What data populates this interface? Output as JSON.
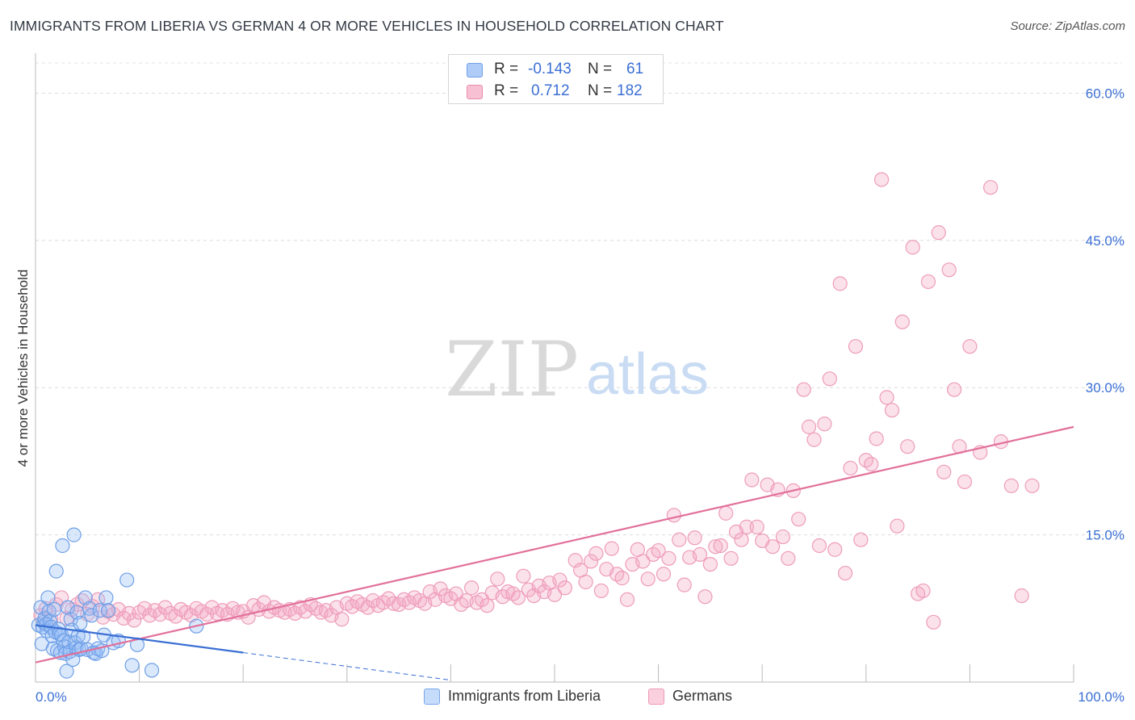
{
  "title": "IMMIGRANTS FROM LIBERIA VS GERMAN 4 OR MORE VEHICLES IN HOUSEHOLD CORRELATION CHART",
  "source": "Source: ZipAtlas.com",
  "watermark": {
    "zip": "ZIP",
    "atlas": "atlas"
  },
  "stats_legend": {
    "rows": [
      {
        "r_label": "R =",
        "r_value": "-0.143",
        "n_label": "N =",
        "n_value": "61",
        "color": "#aeccf7",
        "border": "#6f9fe6"
      },
      {
        "r_label": "R =",
        "r_value": "0.712",
        "n_label": "N =",
        "n_value": "182",
        "color": "#f8c1d3",
        "border": "#e98bab"
      }
    ]
  },
  "bottom_legend": [
    {
      "label": "Immigrants from Liberia",
      "color": "#c5dcfb",
      "border": "#7aa7ea"
    },
    {
      "label": "Germans",
      "color": "#fbd0de",
      "border": "#ec98b5"
    }
  ],
  "chart_data": {
    "type": "scatter",
    "title": "IMMIGRANTS FROM LIBERIA VS GERMAN 4 OR MORE VEHICLES IN HOUSEHOLD CORRELATION CHART",
    "xlabel": "",
    "ylabel": "4 or more Vehicles in Household",
    "xlim": [
      0,
      100
    ],
    "ylim": [
      0,
      63
    ],
    "x_tick_labels": [
      {
        "value": 0,
        "label": "0.0%"
      },
      {
        "value": 100,
        "label": "100.0%"
      }
    ],
    "y_tick_labels": [
      {
        "value": 15,
        "label": "15.0%"
      },
      {
        "value": 30,
        "label": "30.0%"
      },
      {
        "value": 45,
        "label": "45.0%"
      },
      {
        "value": 60,
        "label": "60.0%"
      }
    ],
    "x_minor_ticks": [
      10,
      20,
      30,
      40,
      50,
      60,
      70,
      80,
      90,
      100
    ],
    "grid": true,
    "legend_position": "top-center",
    "colors": {
      "liberia": "#3b6fd4",
      "germans": "#e2709a"
    },
    "series": [
      {
        "name": "Immigrants from Liberia",
        "color": "#3b6fd4",
        "points": [
          [
            0.3,
            5.8
          ],
          [
            0.5,
            7.6
          ],
          [
            0.6,
            3.9
          ],
          [
            0.7,
            5.6
          ],
          [
            0.8,
            6.1
          ],
          [
            0.9,
            6.5
          ],
          [
            1.0,
            5.9
          ],
          [
            1.1,
            5.2
          ],
          [
            1.2,
            8.6
          ],
          [
            1.3,
            7.2
          ],
          [
            1.4,
            6.2
          ],
          [
            1.5,
            5.6
          ],
          [
            1.6,
            4.7
          ],
          [
            1.7,
            3.4
          ],
          [
            1.8,
            7.4
          ],
          [
            1.9,
            5.1
          ],
          [
            2.0,
            11.3
          ],
          [
            2.1,
            3.2
          ],
          [
            2.2,
            5.4
          ],
          [
            2.3,
            4.9
          ],
          [
            2.4,
            3.0
          ],
          [
            2.5,
            4.8
          ],
          [
            2.6,
            13.9
          ],
          [
            2.7,
            4.2
          ],
          [
            2.8,
            3.6
          ],
          [
            2.9,
            2.9
          ],
          [
            3.0,
            1.1
          ],
          [
            3.1,
            7.6
          ],
          [
            3.2,
            4.1
          ],
          [
            3.3,
            3.1
          ],
          [
            3.4,
            6.4
          ],
          [
            3.5,
            5.3
          ],
          [
            3.6,
            2.3
          ],
          [
            3.7,
            15.0
          ],
          [
            3.8,
            4.0
          ],
          [
            3.9,
            3.5
          ],
          [
            4.0,
            7.1
          ],
          [
            4.1,
            4.7
          ],
          [
            4.2,
            3.3
          ],
          [
            4.3,
            6.0
          ],
          [
            4.4,
            3.4
          ],
          [
            4.6,
            4.6
          ],
          [
            4.8,
            8.6
          ],
          [
            5.0,
            3.3
          ],
          [
            5.2,
            7.5
          ],
          [
            5.4,
            6.8
          ],
          [
            5.6,
            3.0
          ],
          [
            5.8,
            2.9
          ],
          [
            6.0,
            3.4
          ],
          [
            6.2,
            7.3
          ],
          [
            6.4,
            3.2
          ],
          [
            6.6,
            4.8
          ],
          [
            6.8,
            8.6
          ],
          [
            7.0,
            7.3
          ],
          [
            7.5,
            4.0
          ],
          [
            8.0,
            4.2
          ],
          [
            8.8,
            10.4
          ],
          [
            9.3,
            1.7
          ],
          [
            9.8,
            3.8
          ],
          [
            11.2,
            1.2
          ],
          [
            15.5,
            5.7
          ]
        ],
        "trend": {
          "x0": 0,
          "y0": 5.8,
          "x1": 20,
          "y1": 3.0,
          "dashed_to_x": 40,
          "dashed_to_y": 0.2
        }
      },
      {
        "name": "Germans",
        "color": "#e2709a",
        "points": [
          [
            0.5,
            6.8
          ],
          [
            1.0,
            7.5
          ],
          [
            1.5,
            6.4
          ],
          [
            2.0,
            7.9
          ],
          [
            2.5,
            8.6
          ],
          [
            3.0,
            6.5
          ],
          [
            3.5,
            7.4
          ],
          [
            4.0,
            7.9
          ],
          [
            4.5,
            8.3
          ],
          [
            5.0,
            6.9
          ],
          [
            5.5,
            7.7
          ],
          [
            6.0,
            8.4
          ],
          [
            6.5,
            6.6
          ],
          [
            7.0,
            7.2
          ],
          [
            7.5,
            6.9
          ],
          [
            8.0,
            7.4
          ],
          [
            8.5,
            6.5
          ],
          [
            9.0,
            7.0
          ],
          [
            9.5,
            6.3
          ],
          [
            10.0,
            7.1
          ],
          [
            10.5,
            7.5
          ],
          [
            11.0,
            6.8
          ],
          [
            11.5,
            7.3
          ],
          [
            12.0,
            6.9
          ],
          [
            12.5,
            7.6
          ],
          [
            13.0,
            7.0
          ],
          [
            13.5,
            6.7
          ],
          [
            14.0,
            7.4
          ],
          [
            14.5,
            7.1
          ],
          [
            15.0,
            6.8
          ],
          [
            15.5,
            7.5
          ],
          [
            16.0,
            7.2
          ],
          [
            16.5,
            6.9
          ],
          [
            17.0,
            7.6
          ],
          [
            17.5,
            7.0
          ],
          [
            18.0,
            7.3
          ],
          [
            18.5,
            6.9
          ],
          [
            19.0,
            7.5
          ],
          [
            19.5,
            7.1
          ],
          [
            20.0,
            7.2
          ],
          [
            20.5,
            6.6
          ],
          [
            21.0,
            7.8
          ],
          [
            21.5,
            7.4
          ],
          [
            22.0,
            8.1
          ],
          [
            22.5,
            7.2
          ],
          [
            23.0,
            7.6
          ],
          [
            23.5,
            7.3
          ],
          [
            24.0,
            7.1
          ],
          [
            24.5,
            7.4
          ],
          [
            25.0,
            7.0
          ],
          [
            25.5,
            7.6
          ],
          [
            26.0,
            7.2
          ],
          [
            26.5,
            7.9
          ],
          [
            27.0,
            7.5
          ],
          [
            27.5,
            7.1
          ],
          [
            28.0,
            7.3
          ],
          [
            28.5,
            6.8
          ],
          [
            29.0,
            7.6
          ],
          [
            29.5,
            6.4
          ],
          [
            30.0,
            8.0
          ],
          [
            30.5,
            7.7
          ],
          [
            31.0,
            8.2
          ],
          [
            31.5,
            7.9
          ],
          [
            32.0,
            7.6
          ],
          [
            32.5,
            8.3
          ],
          [
            33.0,
            7.8
          ],
          [
            33.5,
            8.1
          ],
          [
            34.0,
            8.5
          ],
          [
            34.5,
            8.0
          ],
          [
            35.0,
            7.9
          ],
          [
            35.5,
            8.4
          ],
          [
            36.0,
            8.1
          ],
          [
            36.5,
            8.6
          ],
          [
            37.0,
            8.3
          ],
          [
            37.5,
            8.0
          ],
          [
            38.0,
            9.2
          ],
          [
            38.5,
            8.4
          ],
          [
            39.0,
            9.5
          ],
          [
            39.5,
            8.8
          ],
          [
            40.0,
            8.5
          ],
          [
            40.5,
            9.0
          ],
          [
            41.0,
            7.9
          ],
          [
            41.5,
            8.3
          ],
          [
            42.0,
            9.6
          ],
          [
            42.5,
            8.1
          ],
          [
            43.0,
            8.4
          ],
          [
            43.5,
            7.8
          ],
          [
            44.0,
            9.1
          ],
          [
            44.5,
            10.5
          ],
          [
            45.0,
            8.7
          ],
          [
            45.5,
            9.2
          ],
          [
            46.0,
            9.0
          ],
          [
            46.5,
            8.6
          ],
          [
            47.0,
            10.8
          ],
          [
            47.5,
            9.4
          ],
          [
            48.0,
            8.8
          ],
          [
            48.5,
            9.8
          ],
          [
            49.0,
            9.2
          ],
          [
            49.5,
            10.1
          ],
          [
            50.0,
            8.9
          ],
          [
            50.5,
            10.4
          ],
          [
            51.0,
            9.6
          ],
          [
            52.0,
            12.4
          ],
          [
            52.5,
            11.4
          ],
          [
            53.0,
            10.2
          ],
          [
            53.5,
            12.3
          ],
          [
            54.0,
            13.1
          ],
          [
            54.5,
            9.3
          ],
          [
            55.0,
            11.5
          ],
          [
            55.5,
            13.6
          ],
          [
            56.0,
            11.0
          ],
          [
            56.5,
            10.6
          ],
          [
            57.0,
            8.4
          ],
          [
            57.5,
            12.0
          ],
          [
            58.0,
            13.5
          ],
          [
            58.5,
            12.3
          ],
          [
            59.0,
            10.5
          ],
          [
            59.5,
            13.0
          ],
          [
            60.0,
            13.4
          ],
          [
            60.5,
            11.0
          ],
          [
            61.0,
            12.6
          ],
          [
            61.5,
            17.0
          ],
          [
            62.0,
            14.5
          ],
          [
            62.5,
            9.9
          ],
          [
            63.0,
            12.7
          ],
          [
            63.5,
            14.7
          ],
          [
            64.0,
            13.0
          ],
          [
            64.5,
            8.7
          ],
          [
            65.0,
            12.0
          ],
          [
            65.5,
            13.8
          ],
          [
            66.0,
            13.9
          ],
          [
            66.5,
            17.2
          ],
          [
            67.0,
            12.6
          ],
          [
            67.5,
            15.3
          ],
          [
            68.0,
            14.5
          ],
          [
            68.5,
            15.8
          ],
          [
            69.0,
            20.6
          ],
          [
            69.5,
            15.8
          ],
          [
            70.0,
            14.4
          ],
          [
            70.5,
            20.1
          ],
          [
            71.0,
            13.8
          ],
          [
            71.5,
            19.6
          ],
          [
            72.0,
            14.8
          ],
          [
            72.5,
            12.6
          ],
          [
            73.0,
            19.5
          ],
          [
            73.5,
            16.6
          ],
          [
            74.0,
            29.8
          ],
          [
            74.5,
            26.0
          ],
          [
            75.0,
            24.7
          ],
          [
            75.5,
            13.9
          ],
          [
            76.0,
            26.3
          ],
          [
            76.5,
            30.9
          ],
          [
            77.0,
            13.5
          ],
          [
            77.5,
            40.6
          ],
          [
            78.0,
            11.1
          ],
          [
            78.5,
            21.8
          ],
          [
            79.0,
            34.2
          ],
          [
            79.5,
            14.5
          ],
          [
            80.0,
            22.6
          ],
          [
            80.5,
            22.2
          ],
          [
            81.0,
            24.8
          ],
          [
            81.5,
            51.2
          ],
          [
            82.0,
            29.0
          ],
          [
            82.5,
            27.7
          ],
          [
            83.0,
            15.9
          ],
          [
            83.5,
            36.7
          ],
          [
            84.0,
            24.0
          ],
          [
            84.5,
            44.3
          ],
          [
            85.0,
            9.0
          ],
          [
            85.5,
            9.3
          ],
          [
            86.0,
            40.8
          ],
          [
            86.5,
            6.1
          ],
          [
            87.0,
            45.8
          ],
          [
            87.5,
            21.4
          ],
          [
            88.0,
            42.0
          ],
          [
            88.5,
            29.8
          ],
          [
            89.0,
            24.0
          ],
          [
            89.5,
            20.4
          ],
          [
            90.0,
            34.2
          ],
          [
            91.0,
            23.4
          ],
          [
            92.0,
            50.4
          ],
          [
            93.0,
            24.5
          ],
          [
            94.0,
            20.0
          ],
          [
            95.0,
            8.8
          ],
          [
            96.0,
            20.0
          ]
        ],
        "trend": {
          "x0": 0,
          "y0": 2.0,
          "x1": 100,
          "y1": 26.0
        }
      }
    ]
  }
}
